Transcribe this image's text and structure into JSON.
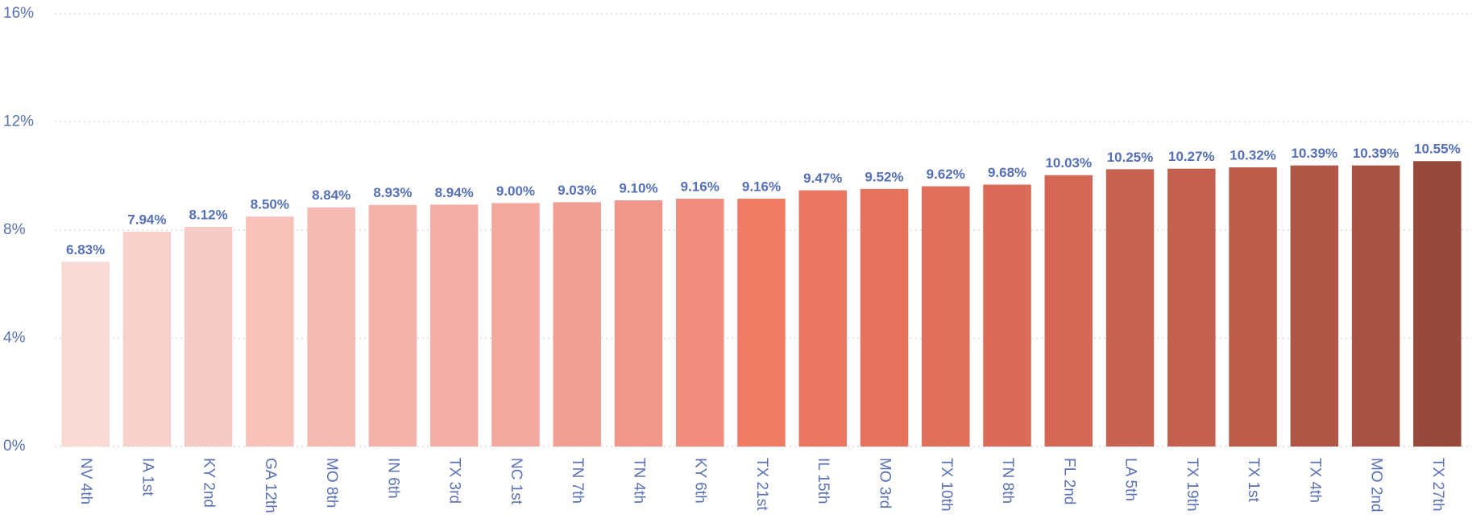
{
  "chart_data": {
    "type": "bar",
    "categories": [
      "NV 4th",
      "IA 1st",
      "KY 2nd",
      "GA 12th",
      "MO 8th",
      "IN 6th",
      "TX 3rd",
      "NC 1st",
      "TN 7th",
      "TN 4th",
      "KY 6th",
      "TX 21st",
      "IL 15th",
      "MO 3rd",
      "TX 10th",
      "TN 8th",
      "FL 2nd",
      "LA 5th",
      "TX 19th",
      "TX 1st",
      "TX 4th",
      "MO 2nd",
      "TX 27th"
    ],
    "values": [
      6.83,
      7.94,
      8.12,
      8.5,
      8.84,
      8.93,
      8.94,
      9.0,
      9.03,
      9.1,
      9.16,
      9.16,
      9.47,
      9.52,
      9.62,
      9.68,
      10.03,
      10.25,
      10.27,
      10.32,
      10.39,
      10.39,
      10.55
    ],
    "value_labels": [
      "6.83%",
      "7.94%",
      "8.12%",
      "8.50%",
      "8.84%",
      "8.93%",
      "8.94%",
      "9.00%",
      "9.03%",
      "9.10%",
      "9.16%",
      "9.16%",
      "9.47%",
      "9.52%",
      "9.62%",
      "9.68%",
      "10.03%",
      "10.25%",
      "10.27%",
      "10.32%",
      "10.39%",
      "10.39%",
      "10.55%"
    ],
    "colors": [
      "#f9dad5",
      "#f8d1cc",
      "#f7cbc5",
      "#f6c2ba",
      "#f5bab1",
      "#f4b3aa",
      "#f3aea5",
      "#f3a89e",
      "#f29f94",
      "#f2978b",
      "#f18c7e",
      "#f07c66",
      "#ea7762",
      "#e5735e",
      "#e06f5b",
      "#d96b58",
      "#d26755",
      "#c96351",
      "#c4604f",
      "#bc5c4b",
      "#b05646",
      "#a85243",
      "#96483a"
    ],
    "ylim": [
      0,
      16
    ],
    "yticks": [
      {
        "value": 0,
        "label": "0%"
      },
      {
        "value": 4,
        "label": "4%"
      },
      {
        "value": 8,
        "label": "8%"
      },
      {
        "value": 12,
        "label": "12%"
      },
      {
        "value": 16,
        "label": "16%"
      }
    ],
    "grid": true
  }
}
